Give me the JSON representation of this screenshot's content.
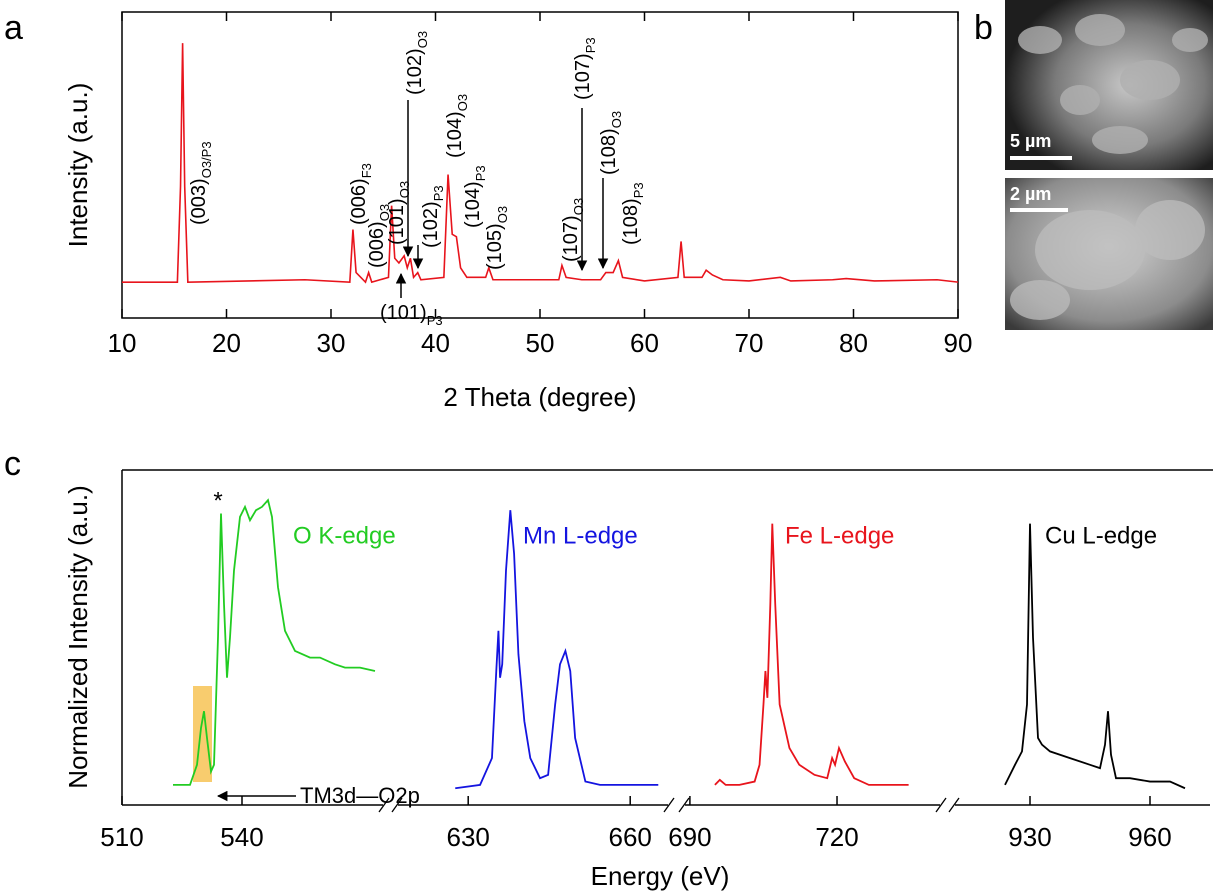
{
  "chart_data": [
    {
      "type": "line",
      "panel": "a",
      "xlabel": "2 Theta (degree)",
      "ylabel": "Intensity (a.u.)",
      "color": "#e8141c",
      "xlim": [
        10,
        90
      ],
      "xticks": [
        10,
        20,
        30,
        40,
        50,
        60,
        70,
        80,
        90
      ],
      "ylim": [
        -15,
        113
      ],
      "x": [
        10,
        15.3,
        15.6,
        15.8,
        16.0,
        16.3,
        27.5,
        31.8,
        32.1,
        32.4,
        33.3,
        33.6,
        33.9,
        35.5,
        35.8,
        36.1,
        36.5,
        37.0,
        37.3,
        37.6,
        37.9,
        38.3,
        38.6,
        40.8,
        41.2,
        41.6,
        42.0,
        42.4,
        43,
        44.8,
        45.1,
        45.5,
        51.8,
        52.1,
        52.5,
        54,
        55.8,
        56.3,
        57.0,
        57.5,
        57.9,
        60,
        63.2,
        63.5,
        63.8,
        65.5,
        65.9,
        66.5,
        67.5,
        70,
        73,
        74,
        78,
        79.3,
        82,
        88,
        90
      ],
      "values": [
        0,
        0,
        40,
        100,
        40,
        0,
        1,
        0,
        22,
        4,
        0,
        4,
        0,
        2,
        32,
        10,
        8,
        11,
        6,
        10,
        2,
        4,
        1,
        2,
        45,
        20,
        19,
        6,
        2,
        2,
        6,
        1,
        1,
        7,
        2,
        1,
        1,
        4,
        4,
        9,
        2,
        0.5,
        2,
        17,
        2,
        2,
        5,
        3,
        1,
        0.5,
        2,
        0.5,
        1,
        1.5,
        0.5,
        1,
        0
      ],
      "annotations": [
        {
          "text": "(003)",
          "sub": "O3/P3"
        },
        {
          "text": "(006)",
          "sub": "F3"
        },
        {
          "text": "(006)",
          "sub": "O3"
        },
        {
          "text": "(101)",
          "sub": "O3"
        },
        {
          "text": "(102)",
          "sub": "O3"
        },
        {
          "text": "(102)",
          "sub": "P3"
        },
        {
          "text": "(104)",
          "sub": "O3"
        },
        {
          "text": "(104)",
          "sub": "P3"
        },
        {
          "text": "(105)",
          "sub": "O3"
        },
        {
          "text": "(107)",
          "sub": "O3"
        },
        {
          "text": "(107)",
          "sub": "P3"
        },
        {
          "text": "(108)",
          "sub": "O3"
        },
        {
          "text": "(108)",
          "sub": "P3"
        },
        {
          "text": "(101)",
          "sub": "P3"
        }
      ]
    },
    {
      "type": "line",
      "panel": "c",
      "xlabel": "Energy (eV)",
      "ylabel": "Normalized Intensity (a.u.)",
      "ylim": [
        0,
        100
      ],
      "segments": [
        {
          "xlim": [
            510,
            575.25
          ],
          "xticks": [
            510,
            540
          ]
        },
        {
          "xlim": [
            617,
            667
          ],
          "xticks": [
            630,
            660
          ]
        },
        {
          "xlim": [
            689,
            741
          ],
          "xticks": [
            690,
            720
          ]
        },
        {
          "xlim": [
            911.25,
            975
          ],
          "xticks": [
            930,
            960
          ]
        }
      ],
      "series": [
        {
          "name": "O K-edge",
          "color": "#22cc22",
          "x": [
            522.75,
            527,
            528.75,
            529.75,
            530.5,
            531.25,
            532.25,
            533,
            534,
            534.75,
            535.5,
            536.25,
            537,
            538,
            539.5,
            540.75,
            542,
            543.5,
            545,
            546.5,
            547.5,
            549,
            550.75,
            553.25,
            557,
            559.5,
            563.25,
            565.75,
            569.5,
            573.25
          ],
          "values": [
            6,
            6,
            12,
            23,
            28,
            20,
            10,
            12,
            50,
            87,
            60,
            38,
            50,
            70,
            86,
            89,
            85,
            88,
            89,
            91,
            86,
            65,
            52,
            46,
            44,
            44,
            42,
            41,
            41,
            40
          ]
        },
        {
          "name": "Mn L-edge",
          "color": "#1414e0",
          "x": [
            627.6,
            632.2,
            634.4,
            635.2,
            635.6,
            635.9,
            636.3,
            637,
            637.8,
            638.5,
            639.3,
            640.4,
            641.5,
            643.3,
            644.8,
            646.1,
            647,
            648,
            648.9,
            649.8,
            651.7,
            654.4,
            658.1,
            665.2
          ],
          "values": [
            5,
            6,
            14,
            40,
            52,
            38,
            42,
            70,
            88,
            75,
            45,
            25,
            14,
            8,
            9,
            30,
            42,
            46,
            40,
            20,
            7,
            6,
            6,
            6
          ]
        },
        {
          "name": "Fe L-edge",
          "color": "#e8141c",
          "x": [
            695.1,
            696.1,
            697.3,
            700.1,
            703.2,
            704.2,
            705,
            705.4,
            705.8,
            706.4,
            706.8,
            707.4,
            708.3,
            710.3,
            712.3,
            715.4,
            718,
            719,
            719.6,
            720.4,
            721.6,
            723.5,
            726.5,
            734.6
          ],
          "values": [
            6,
            7.5,
            6,
            6,
            7,
            12,
            30,
            40,
            32,
            60,
            84,
            60,
            30,
            17,
            12,
            9,
            8,
            14,
            12,
            17,
            13,
            8,
            6,
            6
          ]
        },
        {
          "name": "Cu L-edge",
          "color": "#000000",
          "x": [
            923.75,
            926.25,
            928,
            929.25,
            930,
            930.75,
            932,
            933,
            935,
            940,
            945,
            947.5,
            948.75,
            949.5,
            950.25,
            951.5,
            955,
            960,
            965,
            968.75
          ],
          "values": [
            6,
            12,
            16,
            30,
            84,
            50,
            20,
            18,
            16,
            14,
            12,
            11,
            18,
            28,
            15,
            8,
            8,
            7,
            7,
            5
          ]
        }
      ],
      "annotations": [
        "*",
        "TM3d—O2p"
      ]
    }
  ],
  "panel_b": {
    "label": "b",
    "scale_bars": [
      "5 µm",
      "2 µm"
    ]
  }
}
